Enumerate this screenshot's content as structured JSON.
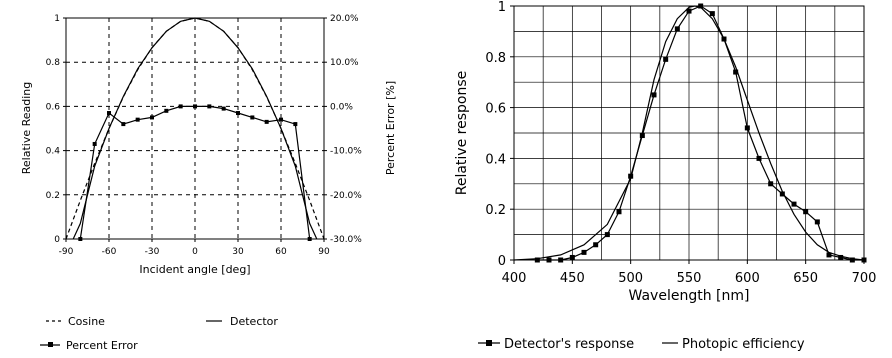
{
  "chart_data": [
    {
      "type": "line",
      "xlabel": "Incident angle [deg]",
      "ylabel": "Relative Reading",
      "y2label": "Percent Error [%]",
      "xlim": [
        -90,
        90
      ],
      "ylim": [
        0,
        1
      ],
      "y2lim": [
        -30,
        20
      ],
      "grid": "dashed",
      "legend_position": "bottom",
      "x_ticks": [
        "-90",
        "-60",
        "-30",
        "0",
        "30",
        "60",
        "90"
      ],
      "y_ticks": [
        "0",
        "0.2",
        "0.4",
        "0.6",
        "0.8",
        "1"
      ],
      "y2_ticks": [
        "-30.0%",
        "-20.0%",
        "-10.0%",
        "0.0%",
        "10.0%",
        "20.0%"
      ],
      "series": [
        {
          "name": "Cosine",
          "style": "dashed",
          "axis": "left",
          "x": [
            -90,
            -80,
            -70,
            -60,
            -50,
            -40,
            -30,
            -20,
            -10,
            0,
            10,
            20,
            30,
            40,
            50,
            60,
            70,
            80,
            90
          ],
          "y": [
            0,
            0.174,
            0.342,
            0.5,
            0.643,
            0.766,
            0.866,
            0.94,
            0.985,
            1,
            0.985,
            0.94,
            0.866,
            0.766,
            0.643,
            0.5,
            0.342,
            0.174,
            0
          ]
        },
        {
          "name": "Detector",
          "style": "solid",
          "axis": "left",
          "x": [
            -85,
            -80,
            -75,
            -70,
            -60,
            -50,
            -40,
            -30,
            -20,
            -10,
            0,
            10,
            20,
            30,
            40,
            50,
            60,
            70,
            75,
            80,
            85
          ],
          "y": [
            0,
            0.07,
            0.2,
            0.33,
            0.5,
            0.645,
            0.77,
            0.865,
            0.94,
            0.985,
            1,
            0.985,
            0.94,
            0.865,
            0.77,
            0.645,
            0.5,
            0.33,
            0.2,
            0.07,
            0
          ]
        },
        {
          "name": "Percent Error",
          "style": "solid-markers",
          "axis": "right",
          "x": [
            -80,
            -70,
            -60,
            -50,
            -40,
            -30,
            -20,
            -10,
            0,
            10,
            20,
            30,
            40,
            50,
            60,
            70,
            80
          ],
          "y": [
            -30,
            -8.5,
            -1.5,
            -4,
            -3,
            -2.5,
            -1,
            0,
            0,
            0,
            -0.5,
            -1.5,
            -2.5,
            -3.5,
            -3,
            -4,
            -30
          ]
        }
      ],
      "legend": [
        "Cosine",
        "Detector",
        "Percent Error"
      ]
    },
    {
      "type": "line",
      "xlabel": "Wavelength [nm]",
      "ylabel": "Relative response",
      "xlim": [
        400,
        700
      ],
      "ylim": [
        0,
        1
      ],
      "grid": "solid",
      "legend_position": "bottom",
      "x_ticks": [
        "400",
        "450",
        "500",
        "550",
        "600",
        "650",
        "700"
      ],
      "y_ticks": [
        "0",
        "0.2",
        "0.4",
        "0.6",
        "0.8",
        "1"
      ],
      "series": [
        {
          "name": "Detector's response",
          "style": "line-square-markers",
          "x": [
            420,
            430,
            440,
            450,
            460,
            470,
            480,
            490,
            500,
            510,
            520,
            530,
            540,
            550,
            560,
            570,
            580,
            590,
            600,
            610,
            620,
            630,
            640,
            650,
            660,
            670,
            680,
            690,
            700
          ],
          "y": [
            0,
            0,
            0,
            0.01,
            0.03,
            0.06,
            0.1,
            0.19,
            0.33,
            0.49,
            0.65,
            0.79,
            0.91,
            0.98,
            1.0,
            0.97,
            0.87,
            0.74,
            0.52,
            0.4,
            0.3,
            0.26,
            0.22,
            0.19,
            0.15,
            0.02,
            0.01,
            0,
            0
          ]
        },
        {
          "name": "Photopic efficiency",
          "style": "solid",
          "x": [
            400,
            420,
            440,
            460,
            480,
            500,
            510,
            520,
            530,
            540,
            550,
            555,
            560,
            570,
            580,
            590,
            600,
            610,
            620,
            630,
            640,
            650,
            660,
            670,
            680,
            690,
            700
          ],
          "y": [
            0,
            0.005,
            0.02,
            0.06,
            0.14,
            0.32,
            0.5,
            0.71,
            0.86,
            0.95,
            0.995,
            1.0,
            0.995,
            0.95,
            0.87,
            0.76,
            0.63,
            0.5,
            0.38,
            0.27,
            0.18,
            0.11,
            0.06,
            0.03,
            0.015,
            0.005,
            0
          ]
        }
      ],
      "legend": [
        "Detector's response",
        "Photopic efficiency"
      ]
    }
  ]
}
